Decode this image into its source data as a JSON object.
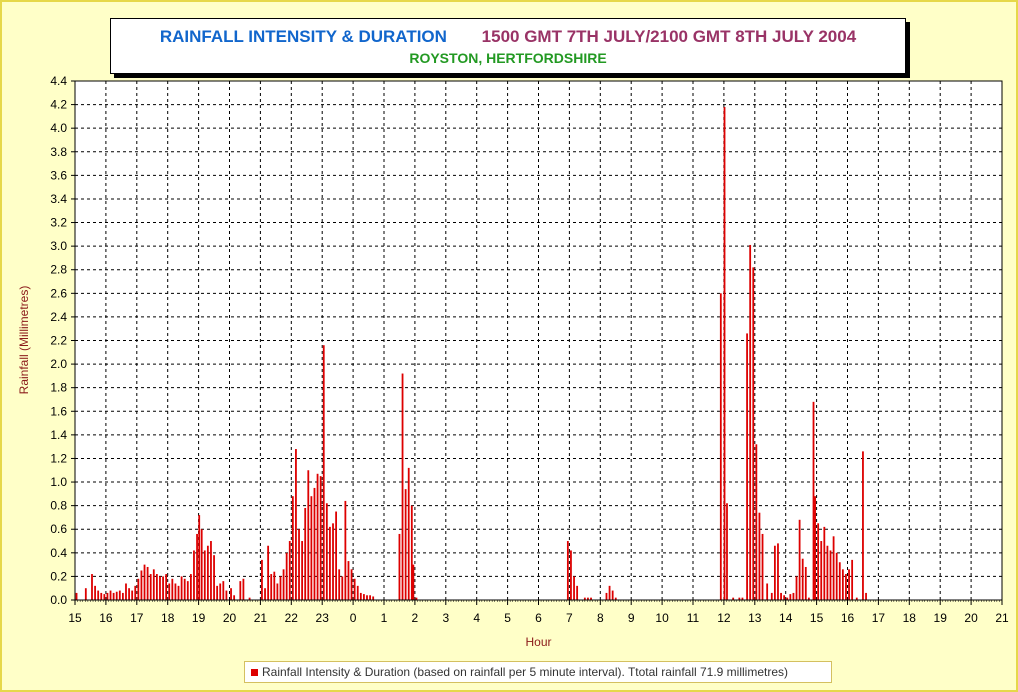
{
  "header": {
    "title_left": "RAINFALL INTENSITY & DURATION",
    "title_right": "1500 GMT 7TH JULY/2100 GMT 8TH JULY 2004",
    "subtitle": "ROYSTON, HERTFORDSHIRE"
  },
  "legend": {
    "label": "Rainfall Intensity & Duration (based on rainfall per 5 minute interval). Ttotal rainfall 71.9 millimetres)"
  },
  "colors": {
    "background": "#ffffc8",
    "bar": "#dd0000",
    "title_blue": "#1166cc",
    "title_maroon": "#993366",
    "subtitle_green": "#229922",
    "axis_label": "#8b1a1a"
  },
  "chart_data": {
    "type": "bar",
    "title": "RAINFALL INTENSITY & DURATION   1500 GMT 7TH JULY/2100 GMT 8TH JULY 2004",
    "subtitle": "ROYSTON, HERTFORDSHIRE",
    "xlabel": "Hour",
    "ylabel": "Rainfall (Millimetres)",
    "ylim": [
      0,
      4.4
    ],
    "yticks": [
      "0.0",
      "0.2",
      "0.4",
      "0.6",
      "0.8",
      "1.0",
      "1.2",
      "1.4",
      "1.6",
      "1.8",
      "2.0",
      "2.2",
      "2.4",
      "2.6",
      "2.8",
      "3.0",
      "3.2",
      "3.4",
      "3.6",
      "3.8",
      "4.0",
      "4.2",
      "4.4"
    ],
    "xticks": [
      "15",
      "16",
      "17",
      "18",
      "19",
      "20",
      "21",
      "22",
      "23",
      "0",
      "1",
      "2",
      "3",
      "4",
      "5",
      "6",
      "7",
      "8",
      "9",
      "10",
      "11",
      "12",
      "13",
      "14",
      "15",
      "16",
      "17",
      "18",
      "19",
      "20",
      "21"
    ],
    "interval_minutes": 5,
    "grid": true,
    "legend_position": "bottom",
    "series": [
      {
        "name": "Rainfall Intensity & Duration (based on rainfall per 5 minute interval). Ttotal rainfall 71.9 millimetres)",
        "points": [
          [
            0.05,
            0.06
          ],
          [
            0.35,
            0.1
          ],
          [
            0.55,
            0.22
          ],
          [
            0.65,
            0.12
          ],
          [
            0.75,
            0.08
          ],
          [
            0.85,
            0.06
          ],
          [
            0.95,
            0.05
          ],
          [
            1.05,
            0.06
          ],
          [
            1.15,
            0.08
          ],
          [
            1.25,
            0.06
          ],
          [
            1.35,
            0.07
          ],
          [
            1.45,
            0.08
          ],
          [
            1.55,
            0.06
          ],
          [
            1.65,
            0.14
          ],
          [
            1.75,
            0.1
          ],
          [
            1.85,
            0.08
          ],
          [
            1.95,
            0.12
          ],
          [
            2.05,
            0.18
          ],
          [
            2.15,
            0.25
          ],
          [
            2.25,
            0.3
          ],
          [
            2.35,
            0.28
          ],
          [
            2.45,
            0.22
          ],
          [
            2.55,
            0.26
          ],
          [
            2.65,
            0.22
          ],
          [
            2.75,
            0.2
          ],
          [
            2.85,
            0.2
          ],
          [
            2.95,
            0.22
          ],
          [
            3.05,
            0.14
          ],
          [
            3.15,
            0.18
          ],
          [
            3.25,
            0.14
          ],
          [
            3.35,
            0.12
          ],
          [
            3.45,
            0.2
          ],
          [
            3.55,
            0.18
          ],
          [
            3.65,
            0.16
          ],
          [
            3.75,
            0.22
          ],
          [
            3.85,
            0.42
          ],
          [
            3.95,
            0.56
          ],
          [
            4.02,
            0.72
          ],
          [
            4.1,
            0.6
          ],
          [
            4.2,
            0.42
          ],
          [
            4.3,
            0.46
          ],
          [
            4.4,
            0.5
          ],
          [
            4.5,
            0.38
          ],
          [
            4.6,
            0.12
          ],
          [
            4.7,
            0.14
          ],
          [
            4.8,
            0.16
          ],
          [
            4.9,
            0.08
          ],
          [
            5.05,
            0.1
          ],
          [
            5.15,
            0.04
          ],
          [
            5.35,
            0.16
          ],
          [
            5.45,
            0.18
          ],
          [
            5.65,
            0.02
          ],
          [
            6.05,
            0.34
          ],
          [
            6.15,
            0.1
          ],
          [
            6.25,
            0.46
          ],
          [
            6.35,
            0.22
          ],
          [
            6.45,
            0.24
          ],
          [
            6.55,
            0.14
          ],
          [
            6.65,
            0.2
          ],
          [
            6.75,
            0.26
          ],
          [
            6.85,
            0.4
          ],
          [
            6.95,
            0.5
          ],
          [
            7.05,
            0.88
          ],
          [
            7.15,
            1.28
          ],
          [
            7.25,
            0.6
          ],
          [
            7.35,
            0.5
          ],
          [
            7.45,
            0.78
          ],
          [
            7.55,
            1.1
          ],
          [
            7.65,
            0.88
          ],
          [
            7.75,
            0.95
          ],
          [
            7.85,
            1.07
          ],
          [
            7.95,
            1.05
          ],
          [
            8.05,
            2.16
          ],
          [
            8.15,
            0.82
          ],
          [
            8.25,
            0.62
          ],
          [
            8.35,
            0.65
          ],
          [
            8.45,
            0.75
          ],
          [
            8.55,
            0.26
          ],
          [
            8.65,
            0.2
          ],
          [
            8.75,
            0.84
          ],
          [
            8.85,
            0.33
          ],
          [
            8.95,
            0.26
          ],
          [
            9.05,
            0.18
          ],
          [
            9.15,
            0.12
          ],
          [
            9.25,
            0.06
          ],
          [
            9.35,
            0.05
          ],
          [
            9.45,
            0.04
          ],
          [
            9.55,
            0.04
          ],
          [
            9.65,
            0.03
          ],
          [
            10.5,
            0.56
          ],
          [
            10.6,
            1.92
          ],
          [
            10.7,
            0.94
          ],
          [
            10.8,
            1.12
          ],
          [
            10.9,
            0.8
          ],
          [
            10.95,
            0.3
          ],
          [
            11.05,
            0.02
          ],
          [
            15.95,
            0.5
          ],
          [
            16.05,
            0.42
          ],
          [
            16.15,
            0.2
          ],
          [
            16.25,
            0.12
          ],
          [
            16.5,
            0.02
          ],
          [
            16.6,
            0.02
          ],
          [
            16.7,
            0.02
          ],
          [
            17.2,
            0.06
          ],
          [
            17.3,
            0.12
          ],
          [
            17.4,
            0.08
          ],
          [
            17.5,
            0.02
          ],
          [
            20.9,
            2.6
          ],
          [
            21.02,
            4.18
          ],
          [
            21.1,
            0.82
          ],
          [
            21.3,
            0.02
          ],
          [
            21.5,
            0.02
          ],
          [
            21.6,
            0.02
          ],
          [
            21.75,
            2.26
          ],
          [
            21.85,
            3.01
          ],
          [
            21.95,
            2.82
          ],
          [
            22.05,
            1.32
          ],
          [
            22.15,
            0.74
          ],
          [
            22.25,
            0.56
          ],
          [
            22.4,
            0.14
          ],
          [
            22.55,
            0.06
          ],
          [
            22.65,
            0.46
          ],
          [
            22.75,
            0.48
          ],
          [
            22.85,
            0.06
          ],
          [
            22.95,
            0.04
          ],
          [
            23.05,
            0.02
          ],
          [
            23.15,
            0.05
          ],
          [
            23.25,
            0.06
          ],
          [
            23.35,
            0.2
          ],
          [
            23.45,
            0.68
          ],
          [
            23.55,
            0.35
          ],
          [
            23.65,
            0.28
          ],
          [
            23.75,
            0.02
          ],
          [
            23.9,
            1.68
          ],
          [
            23.95,
            0.88
          ],
          [
            24.05,
            0.65
          ],
          [
            24.15,
            0.5
          ],
          [
            24.25,
            0.62
          ],
          [
            24.35,
            0.46
          ],
          [
            24.45,
            0.42
          ],
          [
            24.55,
            0.54
          ],
          [
            24.65,
            0.4
          ],
          [
            24.75,
            0.32
          ],
          [
            24.85,
            0.26
          ],
          [
            24.95,
            0.22
          ],
          [
            25.05,
            0.26
          ],
          [
            25.15,
            0.34
          ],
          [
            25.3,
            0.02
          ],
          [
            25.5,
            1.26
          ],
          [
            25.6,
            0.06
          ]
        ]
      }
    ]
  }
}
